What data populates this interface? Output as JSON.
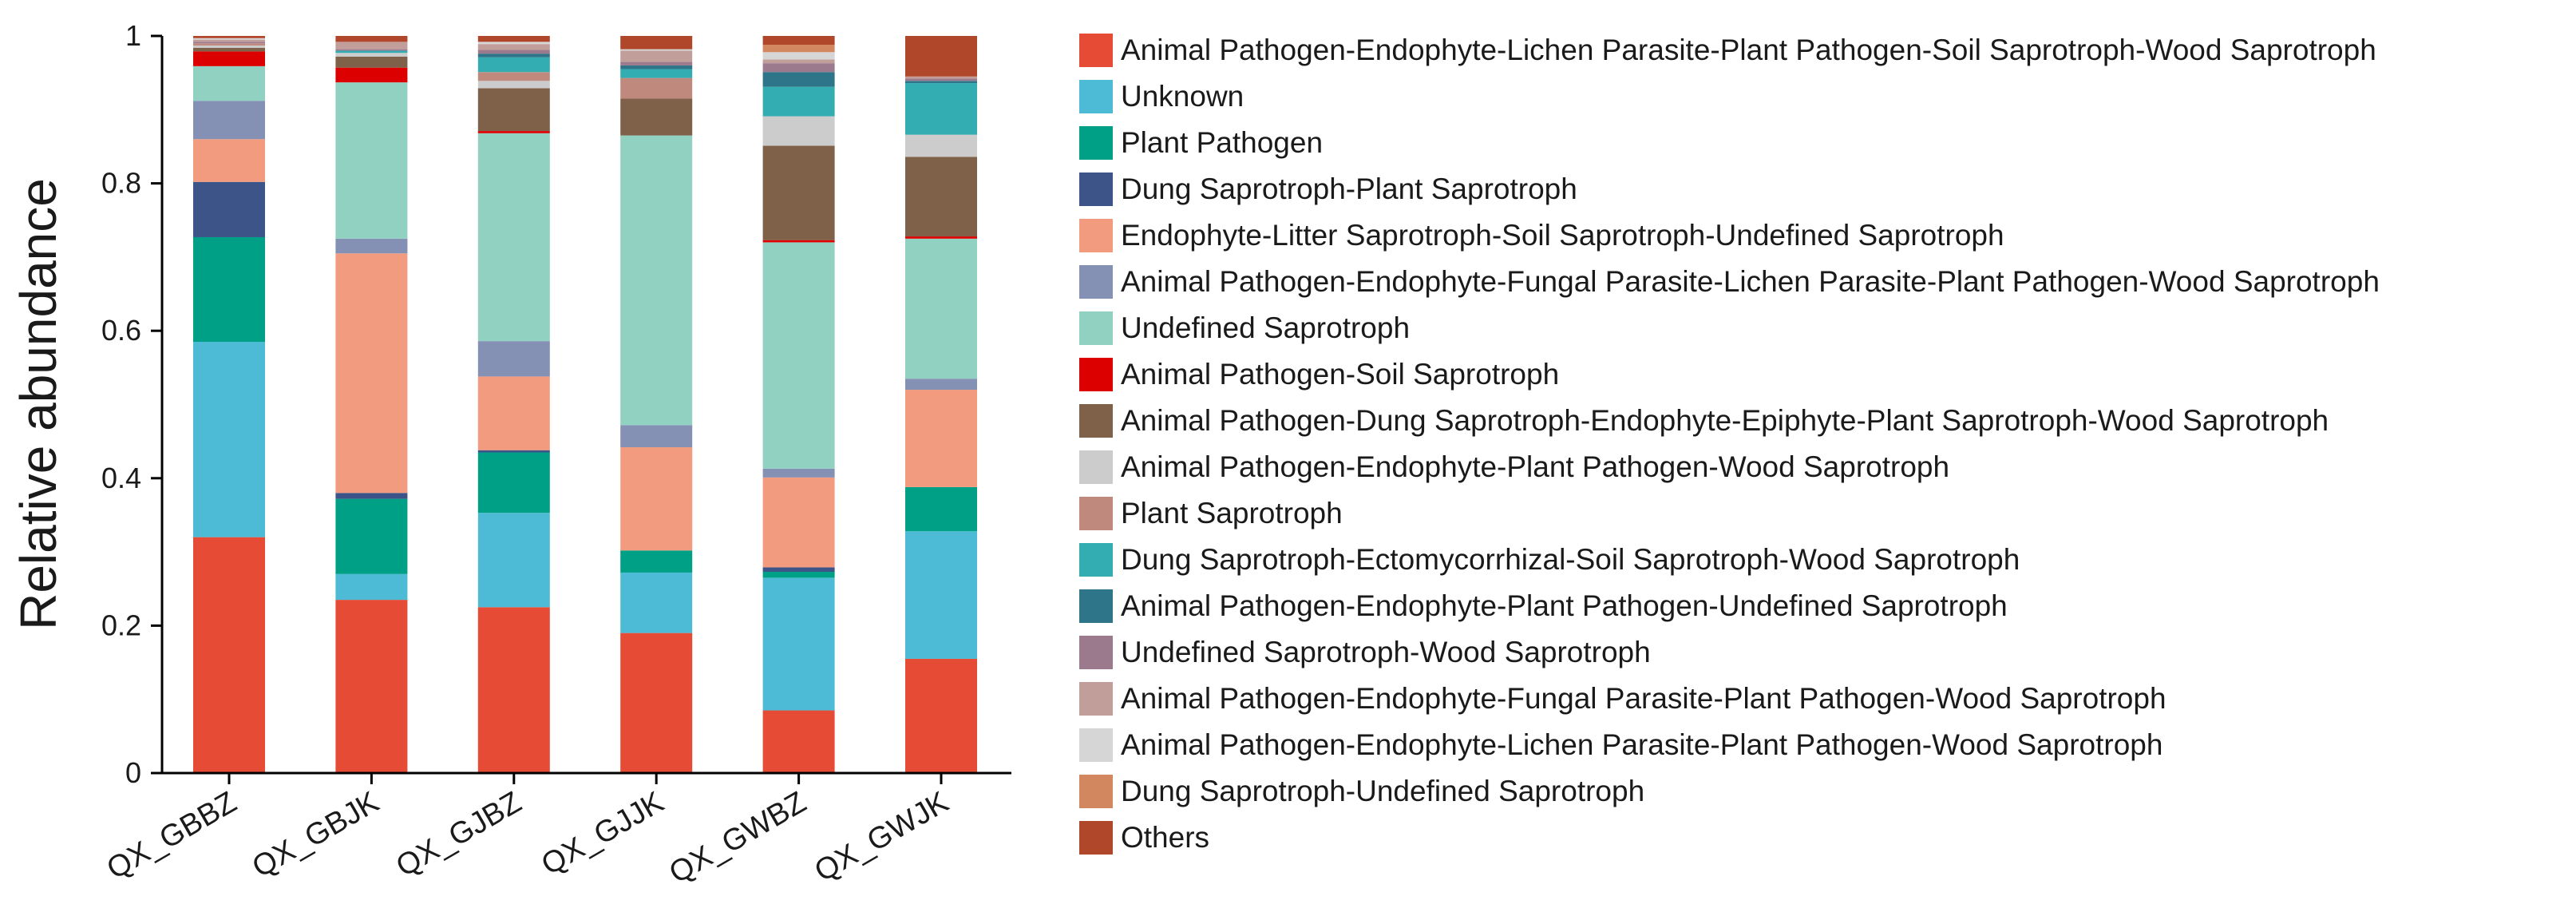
{
  "chart_data": {
    "type": "bar",
    "stacked": true,
    "ylabel": "Relative abundance",
    "xlabel": "",
    "ylim": [
      0,
      1
    ],
    "yticks": [
      0,
      0.2,
      0.4,
      0.6,
      0.8,
      1
    ],
    "ytick_labels": [
      "0",
      "0.2",
      "0.4",
      "0.6",
      "0.8",
      "1"
    ],
    "legend_position": "right",
    "categories": [
      "QX_GBBZ",
      "QX_GBJK",
      "QX_GJBZ",
      "QX_GJJK",
      "QX_GWBZ",
      "QX_GWJK"
    ],
    "series": [
      {
        "name": "Animal Pathogen-Endophyte-Lichen Parasite-Plant Pathogen-Soil Saprotroph-Wood Saprotroph",
        "color": "#E64B35",
        "values": [
          0.32,
          0.235,
          0.225,
          0.19,
          0.085,
          0.155
        ]
      },
      {
        "name": "Unknown",
        "color": "#4DBBD5",
        "values": [
          0.265,
          0.035,
          0.128,
          0.082,
          0.18,
          0.173
        ]
      },
      {
        "name": "Plant Pathogen",
        "color": "#00A087",
        "values": [
          0.142,
          0.102,
          0.082,
          0.03,
          0.008,
          0.06
        ]
      },
      {
        "name": "Dung Saprotroph-Plant Saprotroph",
        "color": "#3C5488",
        "values": [
          0.075,
          0.008,
          0.003,
          0.0,
          0.006,
          0.0
        ]
      },
      {
        "name": "Endophyte-Litter Saprotroph-Soil Saprotroph-Undefined Saprotroph",
        "color": "#F39B7F",
        "values": [
          0.058,
          0.325,
          0.1,
          0.14,
          0.122,
          0.132
        ]
      },
      {
        "name": "Animal Pathogen-Endophyte-Fungal Parasite-Lichen Parasite-Plant Pathogen-Wood Saprotroph",
        "color": "#8491B4",
        "values": [
          0.052,
          0.02,
          0.048,
          0.03,
          0.012,
          0.015
        ]
      },
      {
        "name": "Undefined Saprotroph",
        "color": "#91D1C2",
        "values": [
          0.047,
          0.212,
          0.282,
          0.393,
          0.307,
          0.19
        ]
      },
      {
        "name": "Animal Pathogen-Soil Saprotroph",
        "color": "#DC0000",
        "values": [
          0.02,
          0.02,
          0.003,
          0.0,
          0.003,
          0.003
        ]
      },
      {
        "name": "Animal Pathogen-Dung Saprotroph-Endophyte-Epiphyte-Plant Saprotroph-Wood Saprotroph",
        "color": "#7E6148",
        "values": [
          0.005,
          0.015,
          0.058,
          0.05,
          0.128,
          0.108
        ]
      },
      {
        "name": "Animal Pathogen-Endophyte-Plant Pathogen-Wood Saprotroph",
        "color": "#CCCCCC",
        "values": [
          0.003,
          0.005,
          0.01,
          0.0,
          0.04,
          0.03
        ]
      },
      {
        "name": "Plant Saprotroph",
        "color": "#C0897E",
        "values": [
          0.003,
          0.0,
          0.012,
          0.028,
          0.0,
          0.0
        ]
      },
      {
        "name": "Dung Saprotroph-Ectomycorrhizal-Soil Saprotroph-Wood Saprotroph",
        "color": "#33ADB2",
        "values": [
          0.0,
          0.003,
          0.02,
          0.012,
          0.04,
          0.07
        ]
      },
      {
        "name": "Animal Pathogen-Endophyte-Plant Pathogen-Undefined Saprotroph",
        "color": "#2F7589",
        "values": [
          0.0,
          0.0,
          0.005,
          0.005,
          0.02,
          0.003
        ]
      },
      {
        "name": "Undefined Saprotroph-Wood Saprotroph",
        "color": "#9C7A8E",
        "values": [
          0.002,
          0.002,
          0.005,
          0.005,
          0.012,
          0.003
        ]
      },
      {
        "name": "Animal Pathogen-Endophyte-Fungal Parasite-Plant Pathogen-Wood Saprotroph",
        "color": "#C29E9A",
        "values": [
          0.003,
          0.01,
          0.008,
          0.015,
          0.005,
          0.003
        ]
      },
      {
        "name": "Animal Pathogen-Endophyte-Lichen Parasite-Plant Pathogen-Wood Saprotroph",
        "color": "#D6D6D6",
        "values": [
          0.002,
          0.0,
          0.003,
          0.002,
          0.01,
          0.0
        ]
      },
      {
        "name": "Dung Saprotroph-Undefined Saprotroph",
        "color": "#D3875F",
        "values": [
          0.0,
          0.0,
          0.0,
          0.0,
          0.01,
          0.0
        ]
      },
      {
        "name": "Others",
        "color": "#B1472A",
        "values": [
          0.003,
          0.008,
          0.008,
          0.018,
          0.012,
          0.055
        ]
      }
    ]
  }
}
